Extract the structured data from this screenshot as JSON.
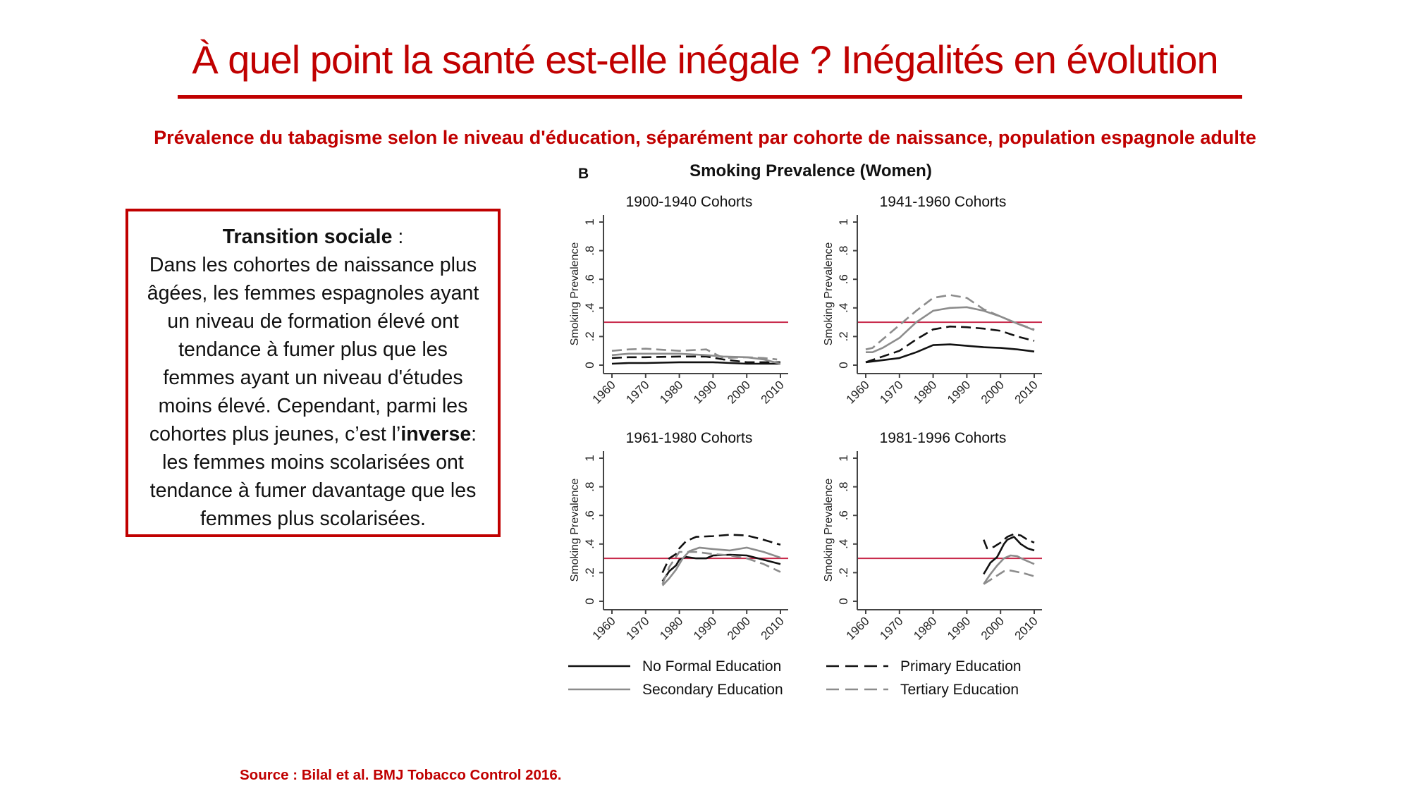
{
  "slide": {
    "title": "À quel point la santé est-elle inégale ? Inégalités en évolution",
    "subtitle": "Prévalence du tabagisme selon le niveau d'éducation, séparément par cohorte de naissance, population espagnole adulte",
    "textbox": {
      "heading": "Transition sociale",
      "heading_suffix": " :",
      "body_part1": "Dans les cohortes de naissance plus âgées, les femmes espagnoles ayant un niveau de formation élevé ont tendance à fumer plus que les femmes ayant un niveau d'études moins élevé. Cependant, parmi les cohortes plus jeunes, c’est l’",
      "body_bold": "inverse",
      "body_part2": ": les femmes moins scolarisées ont tendance à fumer davantage que les femmes plus scolarisées."
    },
    "source": "Source : Bilal et al. BMJ Tobacco Control 2016.",
    "accent_color": "#c00000",
    "reference_line_color": "#c8284a"
  },
  "chart_data": {
    "type": "line",
    "panel_label": "B",
    "title": "Smoking Prevalence (Women)",
    "ylabel": "Smoking Prevalence",
    "xlabel": "",
    "xticks": [
      1960,
      1970,
      1980,
      1990,
      2000,
      2010
    ],
    "yticks": [
      "0",
      ".2",
      ".4",
      ".6",
      ".8",
      "1"
    ],
    "ylim": [
      0,
      1
    ],
    "xlim": [
      1960,
      2010
    ],
    "reference_line": 0.3,
    "legend": [
      {
        "name": "No Formal Education",
        "style": "solid",
        "color": "#111111"
      },
      {
        "name": "Primary Education",
        "style": "dashed",
        "color": "#111111"
      },
      {
        "name": "Secondary Education",
        "style": "solid",
        "color": "#8c8c8c"
      },
      {
        "name": "Tertiary Education",
        "style": "dashed",
        "color": "#8c8c8c"
      }
    ],
    "legend_position": "bottom",
    "panels": [
      {
        "title": "1900-1940 Cohorts",
        "series": [
          {
            "name": "No Formal Education",
            "x": [
              1960,
              1965,
              1970,
              1980,
              1990,
              1995,
              2000,
              2005,
              2010
            ],
            "y": [
              0.01,
              0.015,
              0.015,
              0.02,
              0.02,
              0.015,
              0.01,
              0.01,
              0.01
            ]
          },
          {
            "name": "Primary Education",
            "x": [
              1960,
              1965,
              1970,
              1980,
              1988,
              1993,
              2000,
              2005,
              2010
            ],
            "y": [
              0.05,
              0.055,
              0.055,
              0.06,
              0.06,
              0.04,
              0.02,
              0.02,
              0.02
            ]
          },
          {
            "name": "Secondary Education",
            "x": [
              1960,
              1965,
              1970,
              1980,
              1988,
              1993,
              2000,
              2005,
              2010
            ],
            "y": [
              0.07,
              0.08,
              0.08,
              0.08,
              0.07,
              0.06,
              0.055,
              0.04,
              0.01
            ]
          },
          {
            "name": "Tertiary Education",
            "x": [
              1960,
              1965,
              1970,
              1980,
              1988,
              1993,
              2000,
              2005,
              2009
            ],
            "y": [
              0.1,
              0.11,
              0.115,
              0.1,
              0.11,
              0.05,
              0.055,
              0.05,
              0.04
            ]
          }
        ]
      },
      {
        "title": "1941-1960 Cohorts",
        "series": [
          {
            "name": "No Formal Education",
            "x": [
              1960,
              1965,
              1970,
              1975,
              1980,
              1985,
              1990,
              1995,
              2000,
              2005,
              2010
            ],
            "y": [
              0.02,
              0.035,
              0.05,
              0.09,
              0.14,
              0.145,
              0.135,
              0.125,
              0.12,
              0.11,
              0.095
            ]
          },
          {
            "name": "Primary Education",
            "x": [
              1960,
              1965,
              1970,
              1975,
              1980,
              1985,
              1990,
              1995,
              2000,
              2005,
              2010
            ],
            "y": [
              0.02,
              0.06,
              0.1,
              0.18,
              0.25,
              0.27,
              0.265,
              0.255,
              0.24,
              0.2,
              0.17
            ]
          },
          {
            "name": "Secondary Education",
            "x": [
              1960,
              1962,
              1965,
              1970,
              1975,
              1980,
              1985,
              1990,
              1995,
              2000,
              2005,
              2010
            ],
            "y": [
              0.09,
              0.09,
              0.12,
              0.19,
              0.3,
              0.38,
              0.4,
              0.405,
              0.38,
              0.34,
              0.29,
              0.245
            ]
          },
          {
            "name": "Tertiary Education",
            "x": [
              1960,
              1962,
              1965,
              1970,
              1975,
              1980,
              1985,
              1990,
              1995,
              2000,
              2005,
              2010
            ],
            "y": [
              0.11,
              0.12,
              0.18,
              0.28,
              0.38,
              0.47,
              0.49,
              0.47,
              0.39,
              0.34,
              0.29,
              0.25
            ]
          }
        ]
      },
      {
        "title": "1961-1980 Cohorts",
        "series": [
          {
            "name": "No Formal Education",
            "x": [
              1975,
              1977,
              1979,
              1980,
              1982,
              1985,
              1988,
              1990,
              1995,
              2000,
              2005,
              2010
            ],
            "y": [
              0.14,
              0.21,
              0.25,
              0.29,
              0.31,
              0.3,
              0.3,
              0.32,
              0.325,
              0.32,
              0.29,
              0.26
            ]
          },
          {
            "name": "Primary Education",
            "x": [
              1975,
              1977,
              1979,
              1980,
              1982,
              1985,
              1990,
              1995,
              2000,
              2005,
              2010
            ],
            "y": [
              0.2,
              0.3,
              0.33,
              0.37,
              0.42,
              0.45,
              0.455,
              0.465,
              0.46,
              0.43,
              0.395
            ]
          },
          {
            "name": "Secondary Education",
            "x": [
              1975,
              1977,
              1979,
              1981,
              1983,
              1986,
              1990,
              1995,
              2000,
              2005,
              2010
            ],
            "y": [
              0.11,
              0.16,
              0.22,
              0.3,
              0.35,
              0.375,
              0.365,
              0.355,
              0.375,
              0.345,
              0.305
            ]
          },
          {
            "name": "Tertiary Education",
            "x": [
              1975,
              1977,
              1979,
              1980,
              1985,
              1990,
              1995,
              2000,
              2005,
              2010
            ],
            "y": [
              0.12,
              0.24,
              0.31,
              0.345,
              0.345,
              0.33,
              0.32,
              0.3,
              0.26,
              0.205
            ]
          }
        ]
      },
      {
        "title": "1981-1996 Cohorts",
        "series": [
          {
            "name": "No Formal Education",
            "x": [
              1995,
              1997,
              1999,
              2001,
              2002,
              2004,
              2006,
              2008,
              2010
            ],
            "y": [
              0.19,
              0.27,
              0.31,
              0.4,
              0.43,
              0.45,
              0.4,
              0.37,
              0.355
            ]
          },
          {
            "name": "Primary Education",
            "x": [
              1995,
              1996,
              1998,
              2000,
              2002,
              2004,
              2006,
              2008,
              2010
            ],
            "y": [
              0.43,
              0.37,
              0.38,
              0.41,
              0.45,
              0.47,
              0.46,
              0.43,
              0.41
            ]
          },
          {
            "name": "Secondary Education",
            "x": [
              1995,
              1997,
              1999,
              2001,
              2003,
              2005,
              2007,
              2010
            ],
            "y": [
              0.12,
              0.19,
              0.25,
              0.3,
              0.32,
              0.315,
              0.29,
              0.26
            ]
          },
          {
            "name": "Tertiary Education",
            "x": [
              1995,
              1997,
              1999,
              2001,
              2003,
              2005,
              2007,
              2010
            ],
            "y": [
              0.12,
              0.15,
              0.18,
              0.21,
              0.215,
              0.205,
              0.195,
              0.175
            ]
          }
        ]
      }
    ]
  }
}
